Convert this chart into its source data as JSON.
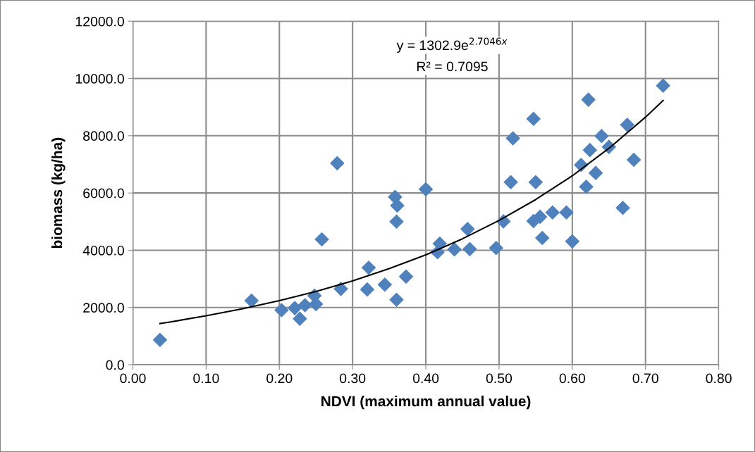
{
  "chart_data": {
    "type": "scatter",
    "xlabel": "NDVI (maximum annual value)",
    "ylabel": "biomass (kg/ha)",
    "annotations": [
      "y = 1302.9e$^{2.7046x}$",
      "R² = 0.7095"
    ],
    "xlim": [
      0,
      0.8
    ],
    "ylim": [
      0,
      12000
    ],
    "xticks": [
      {
        "value": 0,
        "label": "0.00"
      },
      {
        "value": 0.1,
        "label": "0.10"
      },
      {
        "value": 0.2,
        "label": "0.20"
      },
      {
        "value": 0.3,
        "label": "0.30"
      },
      {
        "value": 0.4,
        "label": "0.40"
      },
      {
        "value": 0.5,
        "label": "0.50"
      },
      {
        "value": 0.6,
        "label": "0.60"
      },
      {
        "value": 0.7,
        "label": "0.70"
      },
      {
        "value": 0.8,
        "label": "0.80"
      }
    ],
    "yticks": [
      {
        "value": 0,
        "label": "0.0"
      },
      {
        "value": 2000,
        "label": "2000.0"
      },
      {
        "value": 4000,
        "label": "4000.0"
      },
      {
        "value": 6000,
        "label": "6000.0"
      },
      {
        "value": 8000,
        "label": "8000.0"
      },
      {
        "value": 10000,
        "label": "10000.0"
      },
      {
        "value": 12000,
        "label": "12000.0"
      }
    ],
    "grid": true,
    "legend": false,
    "series": [
      {
        "color": "#4f81bd",
        "marker": "diamond",
        "x": [
          0.037,
          0.162,
          0.258,
          0.203,
          0.221,
          0.228,
          0.235,
          0.248,
          0.25,
          0.284,
          0.279,
          0.358,
          0.361,
          0.36,
          0.4,
          0.322,
          0.32,
          0.344,
          0.36,
          0.373,
          0.419,
          0.416,
          0.439,
          0.46,
          0.457,
          0.496,
          0.506,
          0.622,
          0.724,
          0.547,
          0.519,
          0.675,
          0.64,
          0.624,
          0.65,
          0.684,
          0.612,
          0.632,
          0.619,
          0.516,
          0.55,
          0.669,
          0.573,
          0.592,
          0.556,
          0.547,
          0.559,
          0.6
        ],
        "values": [
          870,
          2240,
          4380,
          1910,
          1980,
          1610,
          2080,
          2410,
          2120,
          2650,
          7040,
          5860,
          5560,
          5000,
          6130,
          3390,
          2630,
          2800,
          2270,
          3080,
          4230,
          3930,
          4030,
          4040,
          4740,
          4080,
          5010,
          9260,
          9750,
          8590,
          7910,
          8380,
          7990,
          7500,
          7610,
          7160,
          6980,
          6700,
          6220,
          6380,
          6380,
          5480,
          5320,
          5320,
          5170,
          5020,
          4430,
          4310
        ]
      },
      {
        "type": "line",
        "color": "#000000",
        "marker": "none",
        "line_style": "solid",
        "x": [
          0.037,
          0.05,
          0.1,
          0.15,
          0.2,
          0.25,
          0.3,
          0.35,
          0.4,
          0.45,
          0.5,
          0.55,
          0.6,
          0.65,
          0.7,
          0.724
        ],
        "values": [
          1440,
          1490,
          1710,
          1960,
          2240,
          2560,
          2930,
          3360,
          3840,
          4400,
          5040,
          5770,
          6600,
          7560,
          8650,
          9230
        ]
      }
    ]
  }
}
